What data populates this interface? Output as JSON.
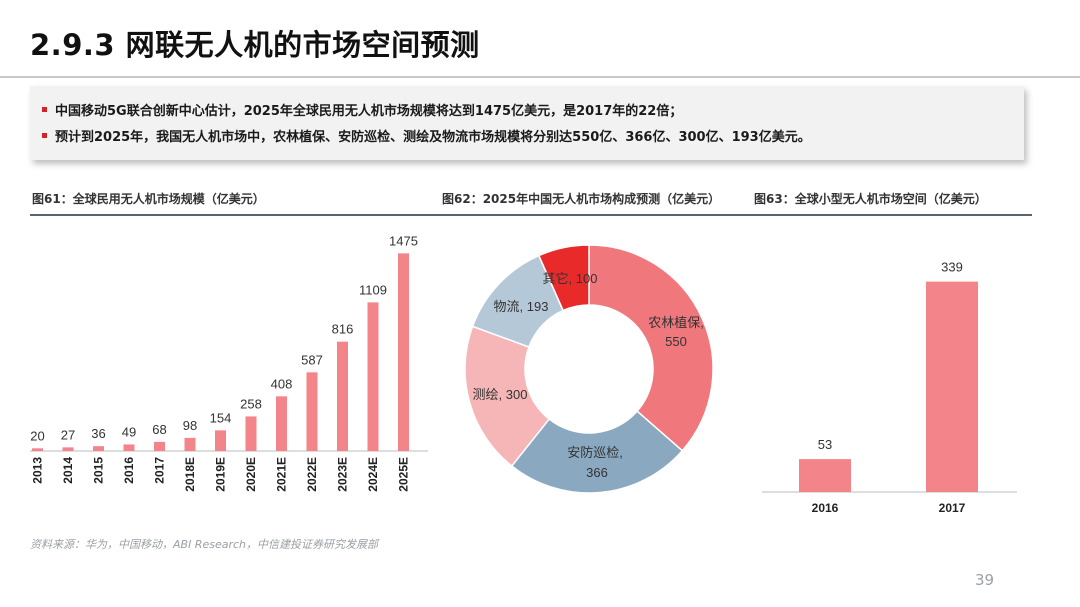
{
  "page": {
    "title": "2.9.3  网联无人机的市场空间预测",
    "bullets": [
      "中国移动5G联合创新中心估计，2025年全球民用无人机市场规模将达到1475亿美元，是2017年的22倍；",
      "预计到2025年，我国无人机市场中，农林植保、安防巡检、测绘及物流市场规模将分别达550亿、366亿、300亿、193亿美元。"
    ],
    "source": "资料来源：华为，中国移动，ABI Research，中信建投证券研究发展部",
    "page_number": "39",
    "accent_color": "#d6202a"
  },
  "chart_data": [
    {
      "type": "bar",
      "title": "图61：全球民用无人机市场规模（亿美元）",
      "categories": [
        "2013",
        "2014",
        "2015",
        "2016",
        "2017",
        "2018E",
        "2019E",
        "2020E",
        "2021E",
        "2022E",
        "2023E",
        "2024E",
        "2025E"
      ],
      "values": [
        20,
        27,
        36,
        49,
        68,
        98,
        154,
        258,
        408,
        587,
        816,
        1109,
        1475
      ],
      "value_labels": [
        "20",
        "27",
        "36",
        "49",
        "68",
        "98",
        "154",
        "258",
        "408",
        "587",
        "816",
        "1109",
        "1475"
      ],
      "ylim": [
        0,
        1500
      ],
      "grid": false,
      "legend": "none",
      "color": "#f2848a",
      "tick_rotation": "vertical"
    },
    {
      "type": "pie",
      "title": "图62：2025年中国无人机市场构成预测（亿美元）",
      "donut": true,
      "categories": [
        "农林植保",
        "安防巡检",
        "测绘",
        "物流",
        "其它"
      ],
      "values": [
        550,
        366,
        300,
        193,
        100
      ],
      "labels": [
        "农林植保,",
        "安防巡检,",
        "测绘, 300",
        "物流, 193",
        "其它, 100"
      ],
      "label_values": [
        "550",
        "366",
        "",
        "",
        ""
      ],
      "colors": [
        "#f0787c",
        "#8aa9c1",
        "#f6b6b8",
        "#b5c8d8",
        "#e82a2a"
      ],
      "legend": "none"
    },
    {
      "type": "bar",
      "title": "图63：全球小型无人机市场空间（亿美元）",
      "categories": [
        "2016",
        "2017"
      ],
      "values": [
        53,
        339
      ],
      "value_labels": [
        "53",
        "339"
      ],
      "ylim": [
        0,
        340
      ],
      "grid": false,
      "legend": "none",
      "color": "#f2848a"
    }
  ]
}
